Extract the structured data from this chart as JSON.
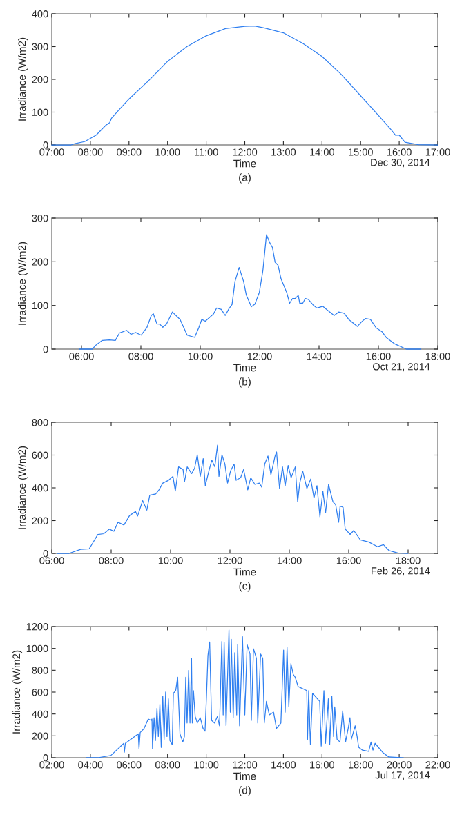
{
  "chart_data": [
    {
      "type": "line",
      "xlabel": "Time",
      "ylabel": "Irradiance (W/m2)",
      "annotations": [
        "Dec 30, 2014",
        "(a)"
      ],
      "grid": false,
      "marker": "none",
      "line_style": "solid",
      "xlim": [
        7,
        17
      ],
      "ylim": [
        0,
        400
      ],
      "yticks": [
        0,
        100,
        200,
        300,
        400
      ],
      "xticks": [
        {
          "value": 7,
          "label": "07:00"
        },
        {
          "value": 8,
          "label": "08:00"
        },
        {
          "value": 9,
          "label": "09:00"
        },
        {
          "value": 10,
          "label": "10:00"
        },
        {
          "value": 11,
          "label": "11:00"
        },
        {
          "value": 12,
          "label": "12:00"
        },
        {
          "value": 13,
          "label": "13:00"
        },
        {
          "value": 14,
          "label": "14:00"
        },
        {
          "value": 15,
          "label": "15:00"
        },
        {
          "value": 16,
          "label": "16:00"
        },
        {
          "value": 17,
          "label": "17:00"
        }
      ],
      "series": [
        {
          "color": "#2f7ff0",
          "x": [
            7.0,
            7.5,
            7.6,
            7.85,
            8.0,
            8.15,
            8.4,
            8.5,
            8.55,
            8.75,
            9.0,
            9.5,
            10.0,
            10.5,
            11.0,
            11.5,
            12.0,
            12.25,
            12.5,
            13.0,
            13.5,
            14.0,
            14.5,
            15.0,
            15.5,
            15.8,
            15.9,
            16.0,
            16.15,
            16.5,
            17.0
          ],
          "values": [
            0,
            0,
            4,
            10,
            20,
            30,
            60,
            68,
            82,
            108,
            140,
            195,
            255,
            300,
            333,
            355,
            362,
            363,
            357,
            342,
            310,
            270,
            215,
            150,
            85,
            45,
            30,
            30,
            8,
            1,
            0
          ]
        }
      ]
    },
    {
      "type": "line",
      "xlabel": "Time",
      "ylabel": "Irradiance (W/m2)",
      "annotations": [
        "Oct 21, 2014",
        "(b)"
      ],
      "grid": false,
      "marker": "none",
      "line_style": "solid",
      "xlim": [
        5,
        18
      ],
      "ylim": [
        0,
        300
      ],
      "yticks": [
        0,
        100,
        200,
        300
      ],
      "xticks": [
        {
          "value": 6,
          "label": "06:00"
        },
        {
          "value": 8,
          "label": "08:00"
        },
        {
          "value": 10,
          "label": "10:00"
        },
        {
          "value": 12,
          "label": "12:00"
        },
        {
          "value": 14,
          "label": "14:00"
        },
        {
          "value": 16,
          "label": "16:00"
        },
        {
          "value": 18,
          "label": "18:00"
        }
      ],
      "series": [
        {
          "color": "#2f7ff0",
          "x": [
            5.92,
            6.36,
            6.5,
            6.7,
            6.94,
            7.14,
            7.28,
            7.52,
            7.67,
            7.82,
            8.01,
            8.2,
            8.35,
            8.42,
            8.54,
            8.64,
            8.74,
            8.86,
            9.06,
            9.32,
            9.56,
            9.81,
            9.95,
            10.05,
            10.17,
            10.44,
            10.55,
            10.71,
            10.84,
            10.97,
            11.07,
            11.17,
            11.31,
            11.46,
            11.55,
            11.72,
            11.84,
            11.99,
            12.11,
            12.23,
            12.33,
            12.43,
            12.52,
            12.62,
            12.72,
            12.91,
            13.01,
            13.11,
            13.2,
            13.3,
            13.35,
            13.45,
            13.54,
            13.64,
            13.79,
            13.93,
            14.13,
            14.27,
            14.51,
            14.66,
            14.85,
            15.0,
            15.29,
            15.44,
            15.56,
            15.73,
            15.92,
            16.12,
            16.26,
            16.55,
            16.94,
            17.43
          ],
          "values": [
            0,
            0,
            10,
            20,
            21,
            20,
            37,
            43,
            34,
            38,
            32,
            49,
            77,
            81,
            58,
            57,
            50,
            57,
            85,
            68,
            32,
            27,
            49,
            68,
            64,
            80,
            94,
            91,
            77,
            93,
            102,
            155,
            187,
            155,
            124,
            97,
            103,
            130,
            180,
            262,
            245,
            233,
            199,
            192,
            161,
            130,
            105,
            116,
            116,
            123,
            105,
            105,
            116,
            114,
            102,
            94,
            98,
            90,
            77,
            85,
            82,
            68,
            52,
            63,
            70,
            68,
            49,
            40,
            27,
            12,
            0,
            0
          ]
        }
      ]
    },
    {
      "type": "line",
      "xlabel": "Time",
      "ylabel": "Irradiance (W/m2)",
      "annotations": [
        "Feb 26, 2014",
        "(c)"
      ],
      "grid": false,
      "marker": "none",
      "line_style": "solid",
      "xlim": [
        6,
        19
      ],
      "ylim": [
        0,
        800
      ],
      "yticks": [
        0,
        200,
        400,
        600,
        800
      ],
      "xticks": [
        {
          "value": 6,
          "label": "06:00"
        },
        {
          "value": 8,
          "label": "08:00"
        },
        {
          "value": 10,
          "label": "10:00"
        },
        {
          "value": 12,
          "label": "12:00"
        },
        {
          "value": 14,
          "label": "14:00"
        },
        {
          "value": 16,
          "label": "16:00"
        },
        {
          "value": 18,
          "label": "18:00"
        }
      ],
      "series": [
        {
          "color": "#2f7ff0",
          "x": [
            6.19,
            6.58,
            6.97,
            7.26,
            7.36,
            7.55,
            7.75,
            7.94,
            8.09,
            8.23,
            8.43,
            8.62,
            8.82,
            8.89,
            9.06,
            9.2,
            9.3,
            9.5,
            9.61,
            9.74,
            9.93,
            10.08,
            10.16,
            10.27,
            10.42,
            10.47,
            10.56,
            10.71,
            10.81,
            10.9,
            11.0,
            11.1,
            11.17,
            11.29,
            11.39,
            11.49,
            11.58,
            11.63,
            11.73,
            11.83,
            11.92,
            12.02,
            12.14,
            12.21,
            12.36,
            12.46,
            12.6,
            12.7,
            12.84,
            12.99,
            13.07,
            13.17,
            13.28,
            13.38,
            13.52,
            13.57,
            13.67,
            13.77,
            13.86,
            13.96,
            14.06,
            14.2,
            14.28,
            14.35,
            14.45,
            14.59,
            14.72,
            14.83,
            14.93,
            15.03,
            15.13,
            15.22,
            15.32,
            15.47,
            15.56,
            15.66,
            15.71,
            15.81,
            15.88,
            16.05,
            16.17,
            16.39,
            16.68,
            16.97,
            17.17,
            17.36,
            17.65,
            17.99
          ],
          "values": [
            0,
            0,
            25,
            28,
            58,
            115,
            120,
            148,
            135,
            190,
            173,
            231,
            256,
            228,
            322,
            264,
            355,
            363,
            388,
            429,
            446,
            470,
            380,
            528,
            512,
            437,
            528,
            487,
            520,
            602,
            470,
            578,
            413,
            503,
            569,
            528,
            660,
            470,
            602,
            545,
            429,
            503,
            545,
            446,
            462,
            512,
            388,
            462,
            421,
            429,
            404,
            545,
            594,
            479,
            594,
            619,
            396,
            528,
            413,
            536,
            462,
            528,
            314,
            429,
            503,
            396,
            454,
            338,
            413,
            223,
            380,
            248,
            421,
            314,
            297,
            190,
            289,
            281,
            149,
            116,
            140,
            83,
            69,
            41,
            53,
            17,
            3,
            0
          ]
        }
      ]
    },
    {
      "type": "line",
      "xlabel": "Time",
      "ylabel": "Irradiance (W/m2)",
      "annotations": [
        "Jul 17, 2014",
        "(d)"
      ],
      "grid": false,
      "marker": "none",
      "line_style": "solid",
      "xlim": [
        2,
        22
      ],
      "ylim": [
        0,
        1200
      ],
      "yticks": [
        0,
        200,
        400,
        600,
        800,
        1000,
        1200
      ],
      "xticks": [
        {
          "value": 2,
          "label": "02:00"
        },
        {
          "value": 4,
          "label": "04:00"
        },
        {
          "value": 6,
          "label": "06:00"
        },
        {
          "value": 8,
          "label": "08:00"
        },
        {
          "value": 10,
          "label": "10:00"
        },
        {
          "value": 12,
          "label": "12:00"
        },
        {
          "value": 14,
          "label": "14:00"
        },
        {
          "value": 16,
          "label": "16:00"
        },
        {
          "value": 18,
          "label": "18:00"
        },
        {
          "value": 20,
          "label": "20:00"
        },
        {
          "value": 22,
          "label": "22:00"
        }
      ],
      "series": [
        {
          "color": "#2f7ff0",
          "x": [
            3.79,
            4.39,
            5.06,
            5.73,
            5.76,
            5.81,
            6.48,
            6.52,
            6.58,
            6.78,
            7.0,
            7.15,
            7.19,
            7.22,
            7.3,
            7.37,
            7.45,
            7.52,
            7.6,
            7.67,
            7.75,
            7.82,
            7.9,
            7.97,
            8.04,
            8.12,
            8.24,
            8.3,
            8.42,
            8.52,
            8.64,
            8.79,
            8.87,
            8.94,
            9.01,
            9.09,
            9.16,
            9.24,
            9.28,
            9.34,
            9.43,
            9.54,
            9.69,
            9.84,
            9.94,
            10.01,
            10.09,
            10.18,
            10.28,
            10.43,
            10.58,
            10.69,
            10.81,
            10.88,
            10.93,
            11.03,
            11.18,
            11.25,
            11.3,
            11.4,
            11.48,
            11.58,
            11.63,
            11.73,
            11.88,
            12.0,
            12.12,
            12.27,
            12.34,
            12.45,
            12.6,
            12.67,
            12.82,
            12.93,
            13.01,
            13.12,
            13.27,
            13.49,
            13.64,
            13.87,
            14.01,
            14.09,
            14.19,
            14.28,
            14.39,
            14.51,
            14.61,
            14.76,
            15.21,
            15.25,
            15.31,
            15.4,
            15.51,
            15.88,
            15.96,
            16.1,
            16.18,
            16.33,
            16.4,
            16.51,
            16.6,
            16.66,
            16.78,
            16.93,
            17.07,
            17.22,
            17.37,
            17.45,
            17.52,
            17.72,
            17.82,
            17.9,
            18.09,
            18.42,
            18.54,
            18.64,
            18.75,
            19.16,
            19.46,
            20.21
          ],
          "values": [
            0,
            0,
            20,
            131,
            50,
            131,
            218,
            82,
            230,
            267,
            354,
            341,
            354,
            82,
            366,
            156,
            453,
            193,
            490,
            94,
            564,
            168,
            601,
            193,
            539,
            156,
            119,
            589,
            614,
            737,
            218,
            143,
            193,
            737,
            317,
            799,
            317,
            910,
            317,
            614,
            378,
            317,
            366,
            267,
            242,
            539,
            935,
            1059,
            341,
            317,
            378,
            292,
            1064,
            391,
            1059,
            292,
            1170,
            416,
            1084,
            366,
            960,
            391,
            1034,
            292,
            1108,
            391,
            1034,
            948,
            341,
            997,
            910,
            317,
            948,
            910,
            317,
            515,
            391,
            416,
            267,
            317,
            985,
            416,
            1009,
            465,
            861,
            762,
            737,
            651,
            614,
            168,
            614,
            119,
            589,
            515,
            106,
            614,
            131,
            539,
            119,
            564,
            193,
            465,
            168,
            143,
            428,
            143,
            280,
            366,
            168,
            292,
            193,
            94,
            69,
            57,
            143,
            69,
            131,
            45,
            7,
            0
          ]
        }
      ]
    }
  ]
}
